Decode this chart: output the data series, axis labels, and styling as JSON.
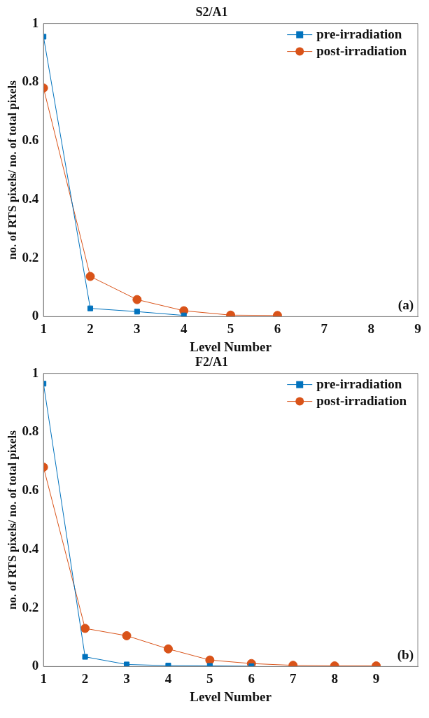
{
  "chart_data": [
    {
      "type": "line",
      "title": "S2/A1",
      "xlabel": "Level Number",
      "ylabel": "no. of RTS pixels/ no. of total pixels",
      "annotations": [
        "(a)"
      ],
      "xlim": [
        1,
        9
      ],
      "xticks": [
        1,
        2,
        3,
        4,
        5,
        6,
        7,
        8,
        9
      ],
      "ylim": [
        0,
        1
      ],
      "yticks": [
        0,
        0.2,
        0.4,
        0.6,
        0.8,
        1
      ],
      "grid": false,
      "legend": "top right",
      "series": [
        {
          "name": "pre-irradiation",
          "color": "#0072bd",
          "marker": "square",
          "x": [
            1,
            2,
            3,
            4
          ],
          "values": [
            0.955,
            0.028,
            0.017,
            0.004
          ]
        },
        {
          "name": "post-irradiation",
          "color": "#d95319",
          "marker": "circle",
          "x": [
            1,
            2,
            3,
            4,
            5,
            6
          ],
          "values": [
            0.78,
            0.137,
            0.058,
            0.02,
            0.005,
            0.004
          ]
        }
      ]
    },
    {
      "type": "line",
      "title": "F2/A1",
      "xlabel": "Level Number",
      "ylabel": "no. of RTS pixels/ no. of total pixels",
      "annotations": [
        "(b)"
      ],
      "xlim": [
        1,
        10
      ],
      "xticks": [
        1,
        2,
        3,
        4,
        5,
        6,
        7,
        8,
        9
      ],
      "ylim": [
        0,
        1
      ],
      "yticks": [
        0,
        0.2,
        0.4,
        0.6,
        0.8,
        1
      ],
      "grid": false,
      "legend": "top right",
      "series": [
        {
          "name": "pre-irradiation",
          "color": "#0072bd",
          "marker": "square",
          "x": [
            1,
            2,
            3,
            4,
            5,
            6
          ],
          "values": [
            0.965,
            0.033,
            0.007,
            0.003,
            0.002,
            0.001
          ]
        },
        {
          "name": "post-irradiation",
          "color": "#d95319",
          "marker": "circle",
          "x": [
            1,
            2,
            3,
            4,
            5,
            6,
            7,
            8,
            9
          ],
          "values": [
            0.68,
            0.13,
            0.105,
            0.06,
            0.022,
            0.01,
            0.004,
            0.002,
            0.002
          ]
        }
      ]
    }
  ]
}
